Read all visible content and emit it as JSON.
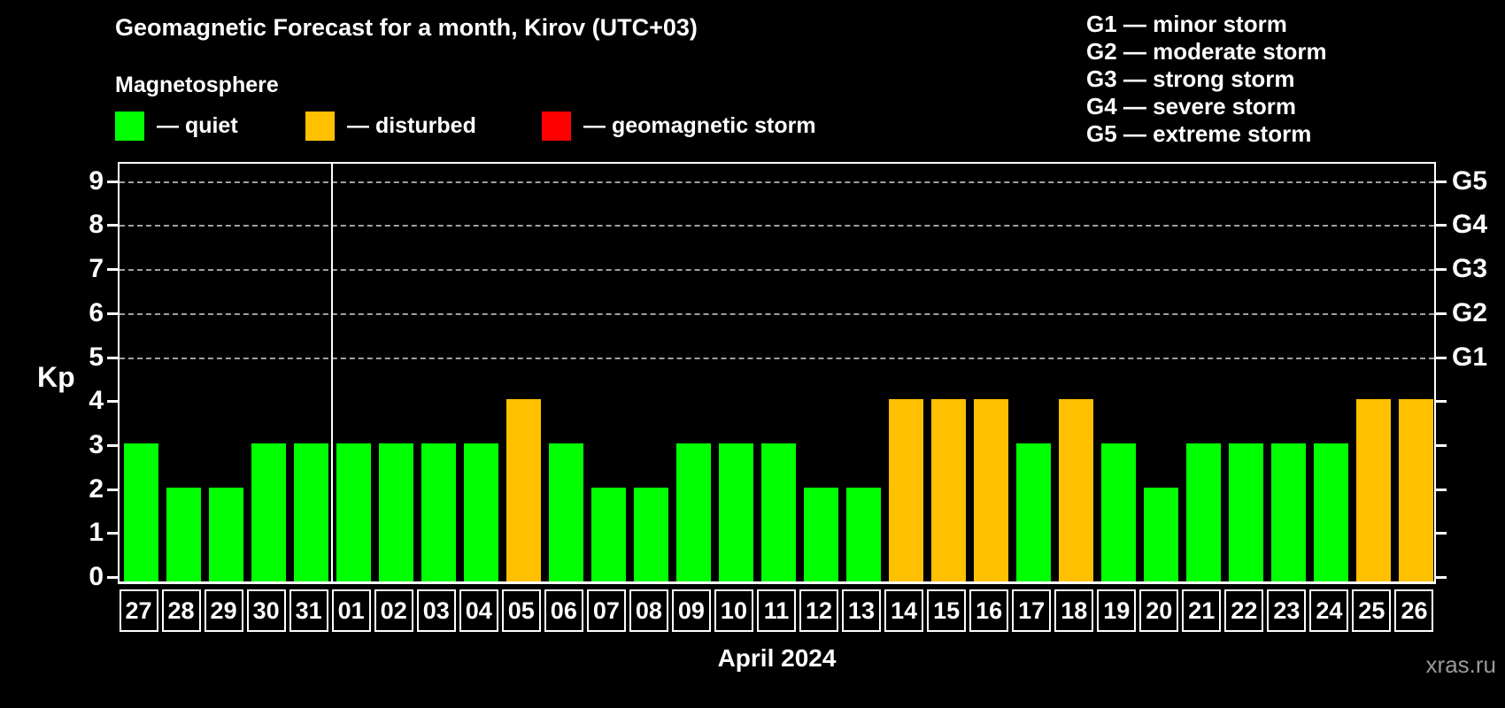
{
  "title": "Geomagnetic Forecast for a month, Kirov (UTC+03)",
  "subtitle": "Magnetosphere",
  "legend": [
    {
      "status": "quiet",
      "label": "— quiet"
    },
    {
      "status": "disturbed",
      "label": "— disturbed"
    },
    {
      "status": "storm",
      "label": "— geomagnetic storm"
    }
  ],
  "storm_scale": [
    "G1 — minor storm",
    "G2 — moderate storm",
    "G3 — strong storm",
    "G4 — severe storm",
    "G5 — extreme storm"
  ],
  "colors": {
    "quiet": "#00ff00",
    "disturbed": "#ffc000",
    "storm": "#ff0000",
    "background": "#000000",
    "text": "#ffffff",
    "grid": "#a0a0a0",
    "watermark": "#999999"
  },
  "watermark": "xras.ru",
  "chart_data": {
    "type": "bar",
    "title": "Geomagnetic Forecast for a month, Kirov (UTC+03)",
    "ylabel": "Kp",
    "xlabel": "April 2024",
    "ylim": [
      0,
      9.4
    ],
    "yticks": [
      0,
      1,
      2,
      3,
      4,
      5,
      6,
      7,
      8,
      9
    ],
    "grid_levels": [
      5,
      6,
      7,
      8,
      9
    ],
    "right_axis_labels": [
      {
        "kp": 5,
        "label": "G1"
      },
      {
        "kp": 6,
        "label": "G2"
      },
      {
        "kp": 7,
        "label": "G3"
      },
      {
        "kp": 8,
        "label": "G4"
      },
      {
        "kp": 9,
        "label": "G5"
      }
    ],
    "month_separator_after_index": 4,
    "categories": [
      "27",
      "28",
      "29",
      "30",
      "31",
      "01",
      "02",
      "03",
      "04",
      "05",
      "06",
      "07",
      "08",
      "09",
      "10",
      "11",
      "12",
      "13",
      "14",
      "15",
      "16",
      "17",
      "18",
      "19",
      "20",
      "21",
      "22",
      "23",
      "24",
      "25",
      "26"
    ],
    "values": [
      3,
      2,
      2,
      3,
      3,
      3,
      3,
      3,
      3,
      4,
      3,
      2,
      2,
      3,
      3,
      3,
      2,
      2,
      4,
      4,
      4,
      3,
      4,
      3,
      2,
      3,
      3,
      3,
      3,
      4,
      4
    ],
    "statuses": [
      "quiet",
      "quiet",
      "quiet",
      "quiet",
      "quiet",
      "quiet",
      "quiet",
      "quiet",
      "quiet",
      "disturbed",
      "quiet",
      "quiet",
      "quiet",
      "quiet",
      "quiet",
      "quiet",
      "quiet",
      "quiet",
      "disturbed",
      "disturbed",
      "disturbed",
      "quiet",
      "disturbed",
      "quiet",
      "quiet",
      "quiet",
      "quiet",
      "quiet",
      "quiet",
      "disturbed",
      "disturbed"
    ]
  }
}
